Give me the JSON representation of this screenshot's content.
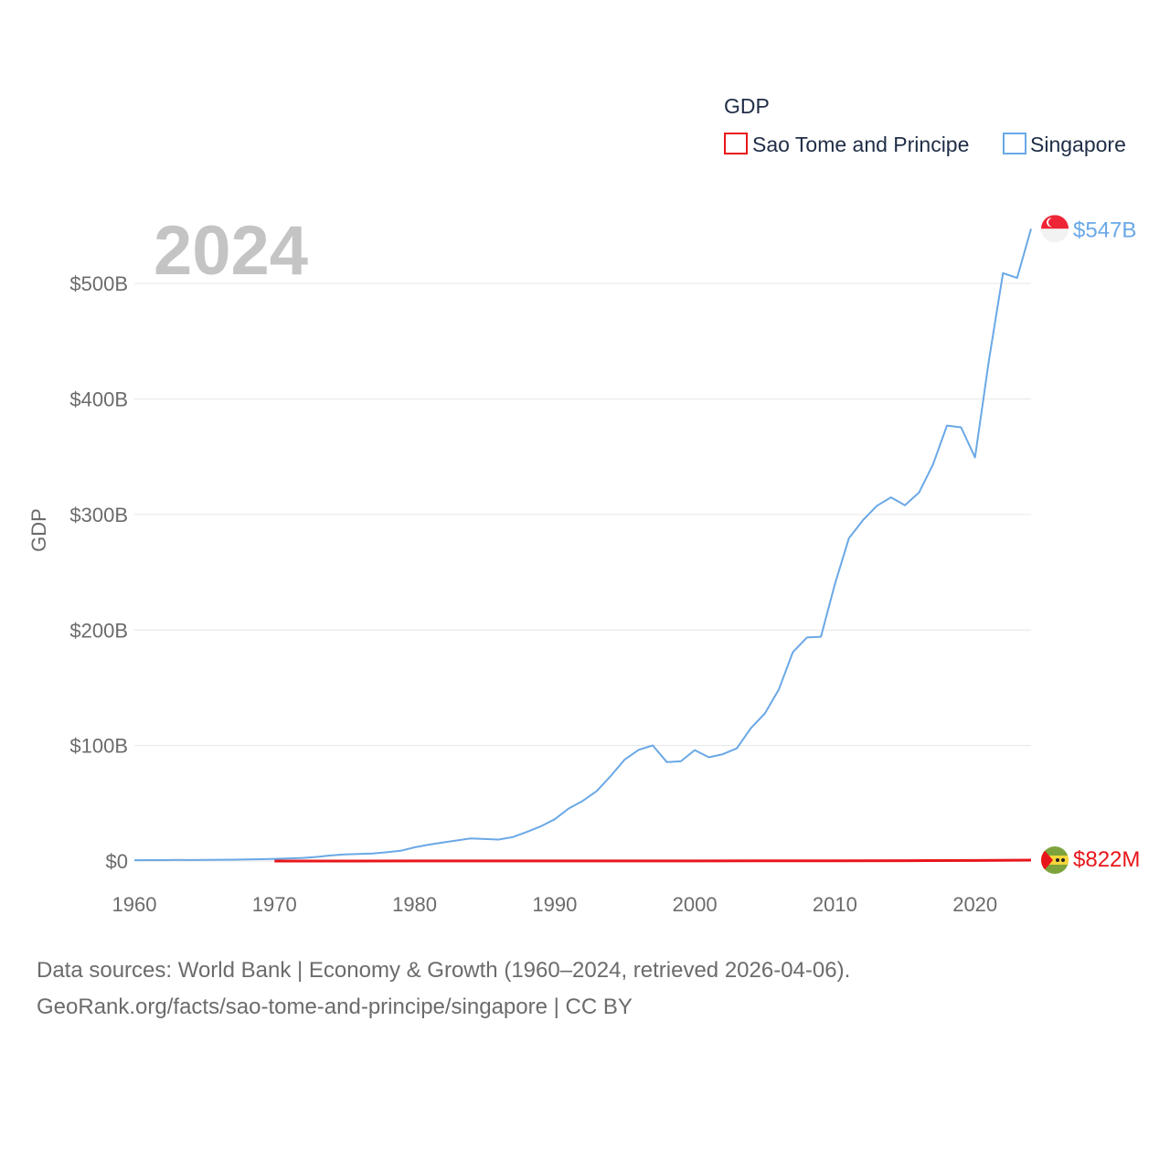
{
  "chart_data": {
    "type": "line",
    "title": "",
    "year_label": "2024",
    "xlabel": "",
    "ylabel": "GDP",
    "xlim": [
      1960,
      2024
    ],
    "ylim": [
      0,
      550
    ],
    "y_unit": "billion USD",
    "x_ticks": [
      "1960",
      "1970",
      "1980",
      "1990",
      "2000",
      "2010",
      "2020"
    ],
    "x_tick_values": [
      1960,
      1970,
      1980,
      1990,
      2000,
      2010,
      2020
    ],
    "y_ticks": [
      "$0",
      "$100B",
      "$200B",
      "$300B",
      "$400B",
      "$500B"
    ],
    "y_tick_values": [
      0,
      100,
      200,
      300,
      400,
      500
    ],
    "grid": true,
    "legend": {
      "title": "GDP",
      "position": "top-right",
      "entries": [
        "Sao Tome and Principe",
        "Singapore"
      ]
    },
    "series": [
      {
        "name": "Sao Tome and Principe",
        "color": "#e8161b",
        "end_label": "$822M",
        "flag": "sao-tome-and-principe-flag",
        "x": [
          1970,
          1975,
          1980,
          1985,
          1990,
          1995,
          2000,
          2005,
          2010,
          2015,
          2020,
          2024
        ],
        "values": [
          0.02,
          0.03,
          0.05,
          0.07,
          0.06,
          0.05,
          0.08,
          0.12,
          0.2,
          0.32,
          0.47,
          0.822
        ]
      },
      {
        "name": "Singapore",
        "color": "#6aa8e6",
        "end_label": "$547B",
        "flag": "singapore-flag",
        "x": [
          1960,
          1961,
          1962,
          1963,
          1964,
          1965,
          1966,
          1967,
          1968,
          1969,
          1970,
          1971,
          1972,
          1973,
          1974,
          1975,
          1976,
          1977,
          1978,
          1979,
          1980,
          1981,
          1982,
          1983,
          1984,
          1985,
          1986,
          1987,
          1988,
          1989,
          1990,
          1991,
          1992,
          1993,
          1994,
          1995,
          1996,
          1997,
          1998,
          1999,
          2000,
          2001,
          2002,
          2003,
          2004,
          2005,
          2006,
          2007,
          2008,
          2009,
          2010,
          2011,
          2012,
          2013,
          2014,
          2015,
          2016,
          2017,
          2018,
          2019,
          2020,
          2021,
          2022,
          2023,
          2024
        ],
        "values": [
          0.7,
          0.76,
          0.83,
          0.92,
          0.89,
          0.97,
          1.1,
          1.2,
          1.4,
          1.6,
          1.9,
          2.3,
          2.7,
          3.6,
          4.8,
          5.7,
          6.1,
          6.6,
          7.6,
          8.9,
          11.9,
          14.2,
          16.1,
          17.8,
          19.6,
          19.1,
          18.6,
          20.7,
          25.2,
          30.0,
          36.2,
          45.5,
          52.1,
          60.6,
          73.7,
          87.9,
          96.3,
          100.1,
          85.7,
          86.3,
          96.1,
          89.8,
          92.5,
          97.6,
          115.0,
          127.8,
          148.6,
          180.9,
          193.6,
          194.2,
          239.8,
          279.4,
          295.1,
          307.6,
          314.9,
          308.0,
          319.0,
          343.3,
          377.0,
          375.5,
          349.5,
          434.1,
          509.0,
          504.8,
          547.4
        ]
      }
    ]
  },
  "sources": {
    "line1": "Data sources: World Bank | Economy & Growth (1960–2024, retrieved 2026-04-06).",
    "line2": "GeoRank.org/facts/sao-tome-and-principe/singapore | CC BY"
  }
}
